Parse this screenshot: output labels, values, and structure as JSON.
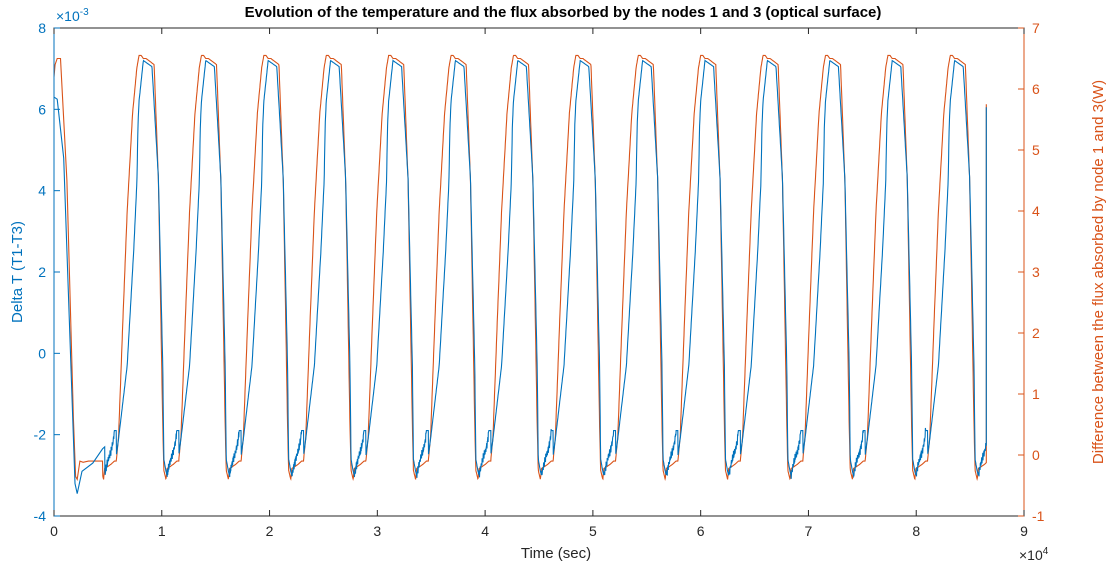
{
  "chart_data": {
    "type": "line",
    "title": "Evolution of the temperature and the flux absorbed by the nodes 1 and 3 (optical surface)",
    "xlabel": "Time (sec)",
    "ylabel_left": "Delta T (T1-T3)",
    "ylabel_right": "Difference between the flux absorbed by node 1 and 3(W)",
    "x_multiplier": "×10",
    "x_multiplier_exp": "4",
    "y_left_multiplier": "×10",
    "y_left_multiplier_exp": "-3",
    "xlim": [
      0,
      90000
    ],
    "ylim_left": [
      -4,
      8
    ],
    "ylim_right": [
      -1,
      7
    ],
    "x_ticks": [
      "0",
      "1",
      "2",
      "3",
      "4",
      "5",
      "6",
      "7",
      "8",
      "9"
    ],
    "y_left_ticks": [
      "-4",
      "-2",
      "0",
      "2",
      "4",
      "6",
      "8"
    ],
    "y_right_ticks": [
      "-1",
      "0",
      "1",
      "2",
      "3",
      "4",
      "5",
      "6",
      "7"
    ],
    "grid": false,
    "legend": "none",
    "colors": {
      "left": "#0072BD",
      "right": "#D95319",
      "axis": "#262626"
    },
    "orbit_period_sec": 5790,
    "x_end_sec": 86500,
    "series": [
      {
        "axis": "left",
        "units": "x1e-3",
        "cycle_profile": {
          "phase_sec": [
            0,
            200,
            1000,
            1600,
            1900,
            2000,
            2100,
            2500,
            3300,
            3900,
            4300,
            4400,
            4600,
            4700,
            4900,
            5100,
            5300,
            5500,
            5600
          ],
          "delta_T_1e3": [
            -2.5,
            -2.1,
            -0.3,
            2.5,
            4.2,
            5.6,
            6.2,
            7.2,
            7.05,
            4.3,
            -0.3,
            -2.6,
            -2.9,
            -3.0,
            -2.75,
            -2.55,
            -2.4,
            -2.15,
            -1.9
          ]
        },
        "initial_values": {
          "x_sec": [
            0,
            300,
            900,
            1500,
            1950,
            2150,
            2600,
            3600,
            4500,
            4700
          ],
          "delta_T_1e3": [
            6.3,
            6.25,
            4.8,
            0.2,
            -3.2,
            -3.45,
            -2.9,
            -2.7,
            -2.35,
            -2.3
          ]
        },
        "final_value": {
          "x_sec": 86500,
          "delta_T_1e3": 6.05
        }
      },
      {
        "axis": "right",
        "units": "W",
        "cycle_profile": {
          "phase_sec": [
            0,
            200,
            600,
            1000,
            1500,
            1900,
            2100,
            2300,
            2500,
            2750,
            3500,
            3900,
            4300,
            4400,
            4600,
            4700,
            4900,
            5300,
            5600
          ],
          "flux_diff_W": [
            -0.08,
            0.3,
            2.2,
            4.0,
            5.6,
            6.35,
            6.55,
            6.55,
            6.5,
            6.5,
            6.4,
            4.5,
            0.5,
            -0.25,
            -0.4,
            -0.22,
            -0.2,
            -0.15,
            -0.1
          ]
        },
        "initial_values": {
          "x_sec": [
            0,
            100,
            300,
            600,
            1200,
            1800,
            2000,
            2150,
            2400,
            2700,
            3200,
            4500
          ],
          "flux_diff_W": [
            6.2,
            6.4,
            6.5,
            6.5,
            4.5,
            0.6,
            -0.35,
            -0.4,
            -0.1,
            -0.12,
            -0.1,
            -0.1
          ]
        },
        "final_value": {
          "x_sec": 86500,
          "flux_diff_W": 5.75
        }
      }
    ]
  }
}
